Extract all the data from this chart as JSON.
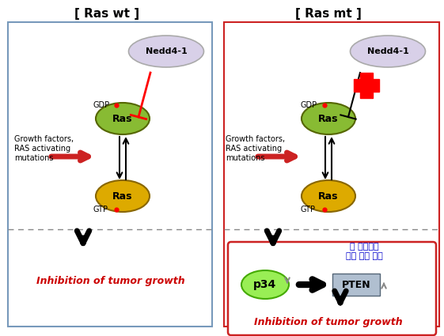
{
  "title_left": "[ Ras wt ]",
  "title_right": "[ Ras mt ]",
  "nedd4_label": "Nedd4-1",
  "gdp_label": "GDP",
  "gtp_label": "GTP",
  "ras_label": "Ras",
  "growth_label": "Growth factors,\nRAS activating\nmutations",
  "inhibition_label": "Inhibition of tumor growth",
  "p34_label": "p34",
  "pten_label": "PTEN",
  "research_label": "본 연구진의\n연구 결과 적용",
  "bg_color": "#ffffff",
  "left_box_color": "#7799bb",
  "right_box_color": "#cc2222",
  "nedd4_fill": "#d8d0e8",
  "ras_gdp_fill": "#88bb33",
  "ras_gtp_fill": "#ddaa00",
  "p34_fill": "#99ee55",
  "pten_fill": "#b0bfd0",
  "inhibition_color": "#cc0000",
  "growth_arrow_color": "#cc2222",
  "research_color": "#0000cc"
}
